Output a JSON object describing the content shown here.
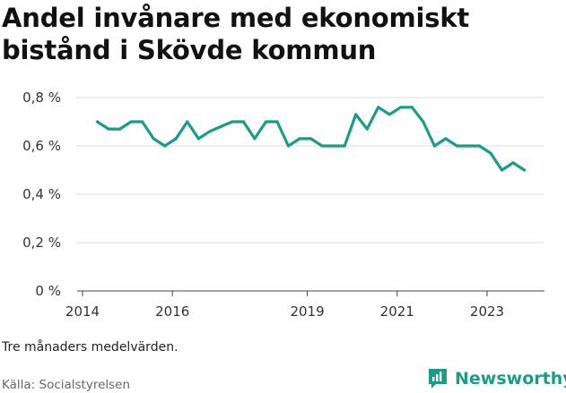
{
  "title": "Andel invånare med ekonomiskt bistånd i Skövde kommun",
  "note": "Tre månaders medelvärden.",
  "source": "Källa: Socialstyrelsen",
  "brand": {
    "name": "Newsworthy",
    "color": "#1d9a8a",
    "icon": "newsworthy-logo-icon"
  },
  "chart_data": {
    "type": "line",
    "title": "Andel invånare med ekonomiskt bistånd i Skövde kommun",
    "xlabel": "",
    "ylabel": "",
    "ylim": [
      0,
      0.8
    ],
    "xlim": [
      2014,
      2024.3
    ],
    "grid": true,
    "yticks": [
      {
        "value": 0,
        "label": "0 %"
      },
      {
        "value": 0.2,
        "label": "0,2 %"
      },
      {
        "value": 0.4,
        "label": "0,4 %"
      },
      {
        "value": 0.6,
        "label": "0,6 %"
      },
      {
        "value": 0.8,
        "label": "0,8 %"
      }
    ],
    "xticks": [
      {
        "value": 2014,
        "label": "2014"
      },
      {
        "value": 2016,
        "label": "2016"
      },
      {
        "value": 2019,
        "label": "2019"
      },
      {
        "value": 2021,
        "label": "2021"
      },
      {
        "value": 2023,
        "label": "2023"
      }
    ],
    "series": [
      {
        "color": "#1d9a8a",
        "x": [
          2014.33,
          2014.58,
          2014.83,
          2015.08,
          2015.33,
          2015.58,
          2015.83,
          2016.08,
          2016.33,
          2016.58,
          2016.83,
          2017.08,
          2017.33,
          2017.58,
          2017.83,
          2018.08,
          2018.33,
          2018.58,
          2018.83,
          2019.08,
          2019.33,
          2019.58,
          2019.83,
          2020.08,
          2020.33,
          2020.58,
          2020.83,
          2021.08,
          2021.33,
          2021.58,
          2021.83,
          2022.08,
          2022.33,
          2022.58,
          2022.83,
          2023.08,
          2023.33,
          2023.58,
          2023.83
        ],
        "values": [
          0.7,
          0.67,
          0.67,
          0.7,
          0.7,
          0.63,
          0.6,
          0.63,
          0.7,
          0.63,
          0.66,
          0.68,
          0.7,
          0.7,
          0.63,
          0.7,
          0.7,
          0.6,
          0.63,
          0.63,
          0.6,
          0.6,
          0.6,
          0.73,
          0.67,
          0.76,
          0.73,
          0.76,
          0.76,
          0.7,
          0.6,
          0.63,
          0.6,
          0.6,
          0.6,
          0.57,
          0.5,
          0.53,
          0.5
        ]
      }
    ]
  }
}
